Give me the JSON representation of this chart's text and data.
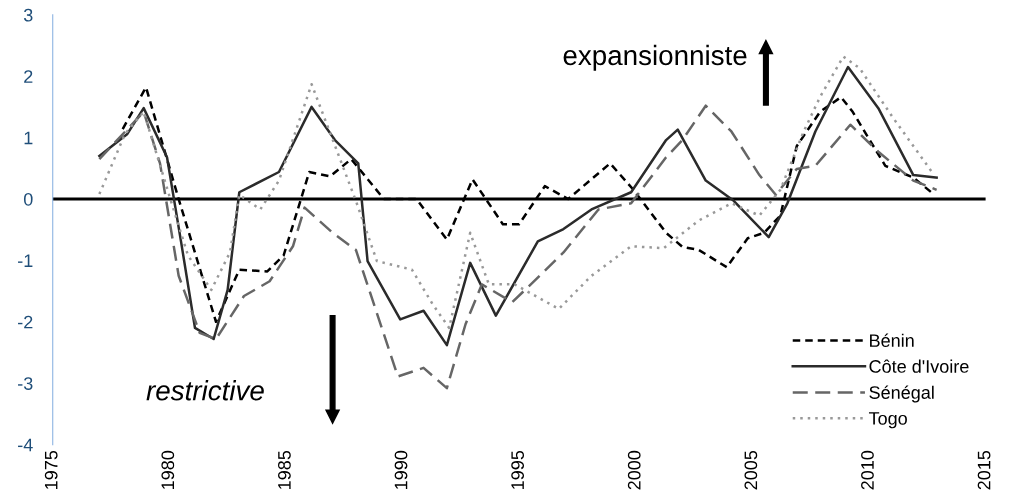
{
  "chart_data": {
    "type": "line",
    "annotations": [
      "expansionniste",
      "restrictive"
    ],
    "xlim": [
      1975,
      2015
    ],
    "xticks": [
      1975,
      1980,
      1985,
      1990,
      1995,
      2000,
      2005,
      2010,
      2015
    ],
    "ylim": [
      -4,
      3
    ],
    "yticks": [
      -4,
      -3,
      -2,
      -1,
      0,
      1,
      2,
      3
    ],
    "grid": false,
    "ref_lines": [
      {
        "axis": "y",
        "value": 0,
        "color": "#000000"
      }
    ],
    "legend": "bottom right",
    "marker": "none",
    "series": [
      {
        "name": "Bénin",
        "color": "#000000",
        "line_style": "dashed",
        "x": [
          1978.0,
          1979.0,
          1980.4,
          1982.0,
          1983.0,
          1984.2,
          1984.9,
          1986.0,
          1986.9,
          1987.8,
          1989.2,
          1990.6,
          1991.9,
          1993.0,
          1994.3,
          1995.0,
          1996.1,
          1997.1,
          1998.9,
          1999.9,
          2001.3,
          2002.0,
          2002.7,
          2003.9,
          2004.8,
          2005.5,
          2006.2,
          2006.9,
          2007.9,
          2008.8,
          2009.3,
          2010.7,
          2011.9,
          2012.8
        ],
        "values": [
          1.14,
          1.82,
          0.0,
          -2.0,
          -1.15,
          -1.18,
          -0.92,
          0.44,
          0.37,
          0.65,
          0.0,
          0.0,
          -0.66,
          0.32,
          -0.41,
          -0.41,
          0.21,
          0.0,
          0.58,
          0.15,
          -0.55,
          -0.78,
          -0.83,
          -1.11,
          -0.64,
          -0.55,
          -0.27,
          0.86,
          1.42,
          1.66,
          1.42,
          0.54,
          0.35,
          0.07
        ]
      },
      {
        "name": "Côte d'Ivoire",
        "color": "#2b2b2b",
        "line_style": "solid",
        "x": [
          1977.0,
          1978.2,
          1978.9,
          1979.9,
          1980.5,
          1981.1,
          1981.9,
          1982.5,
          1983.0,
          1984.7,
          1986.1,
          1987.1,
          1988.1,
          1988.5,
          1989.9,
          1990.9,
          1991.9,
          1992.9,
          1994.0,
          1995.8,
          1996.9,
          1998.1,
          1999.8,
          2001.3,
          2001.8,
          2003.0,
          2004.2,
          2005.7,
          2006.5,
          2007.7,
          2009.1,
          2010.4,
          2011.9,
          2012.9
        ],
        "values": [
          0.7,
          1.06,
          1.48,
          0.68,
          -0.69,
          -2.1,
          -2.28,
          -1.48,
          0.11,
          0.44,
          1.5,
          0.96,
          0.58,
          -1.01,
          -1.96,
          -1.82,
          -2.38,
          -1.04,
          -1.9,
          -0.69,
          -0.49,
          -0.17,
          0.11,
          0.96,
          1.13,
          0.3,
          -0.03,
          -0.62,
          -0.07,
          1.1,
          2.15,
          1.48,
          0.39,
          0.35
        ]
      },
      {
        "name": "Sénégal",
        "color": "#666666",
        "line_style": "longdash",
        "x": [
          1977.0,
          1978.9,
          1979.6,
          1980.4,
          1981.3,
          1982.0,
          1983.2,
          1984.3,
          1985.3,
          1985.8,
          1987.0,
          1988.0,
          1989.8,
          1990.9,
          1991.9,
          1992.7,
          1993.4,
          1994.7,
          1995.5,
          1996.9,
          1998.4,
          1999.8,
          2001.3,
          2002.0,
          2003.0,
          2004.1,
          2005.3,
          2006.0,
          2006.9,
          2007.7,
          2009.2,
          2010.4,
          2011.9,
          2012.9
        ],
        "values": [
          0.65,
          1.42,
          0.58,
          -1.25,
          -2.18,
          -2.28,
          -1.58,
          -1.34,
          -0.77,
          -0.14,
          -0.55,
          -0.83,
          -2.89,
          -2.75,
          -3.08,
          -2.04,
          -1.39,
          -1.68,
          -1.39,
          -0.87,
          -0.17,
          -0.07,
          0.68,
          0.96,
          1.52,
          1.1,
          0.39,
          0.07,
          0.49,
          0.54,
          1.21,
          0.77,
          0.3,
          0.15
        ]
      },
      {
        "name": "Togo",
        "color": "#999999",
        "line_style": "dotted",
        "x": [
          1977.0,
          1978.1,
          1978.9,
          1980.1,
          1980.8,
          1981.8,
          1982.6,
          1983.0,
          1983.9,
          1984.7,
          1986.1,
          1987.2,
          1988.0,
          1988.9,
          1990.4,
          1991.3,
          1992.0,
          1992.9,
          1993.7,
          1994.8,
          1996.7,
          1998.1,
          1999.8,
          2001.2,
          2002.7,
          2004.1,
          2005.3,
          2006.2,
          2007.2,
          2007.9,
          2008.9,
          2009.6,
          2011.0,
          2012.7
        ],
        "values": [
          0.08,
          1.06,
          1.42,
          -0.07,
          -0.92,
          -1.48,
          -0.87,
          0.07,
          -0.17,
          0.3,
          1.87,
          0.77,
          -0.03,
          -1.01,
          -1.15,
          -1.72,
          -2.1,
          -0.55,
          -1.39,
          -1.39,
          -1.79,
          -1.25,
          -0.77,
          -0.8,
          -0.35,
          -0.07,
          -0.27,
          0.15,
          1.1,
          1.66,
          2.32,
          2.13,
          1.34,
          0.44
        ]
      }
    ]
  }
}
